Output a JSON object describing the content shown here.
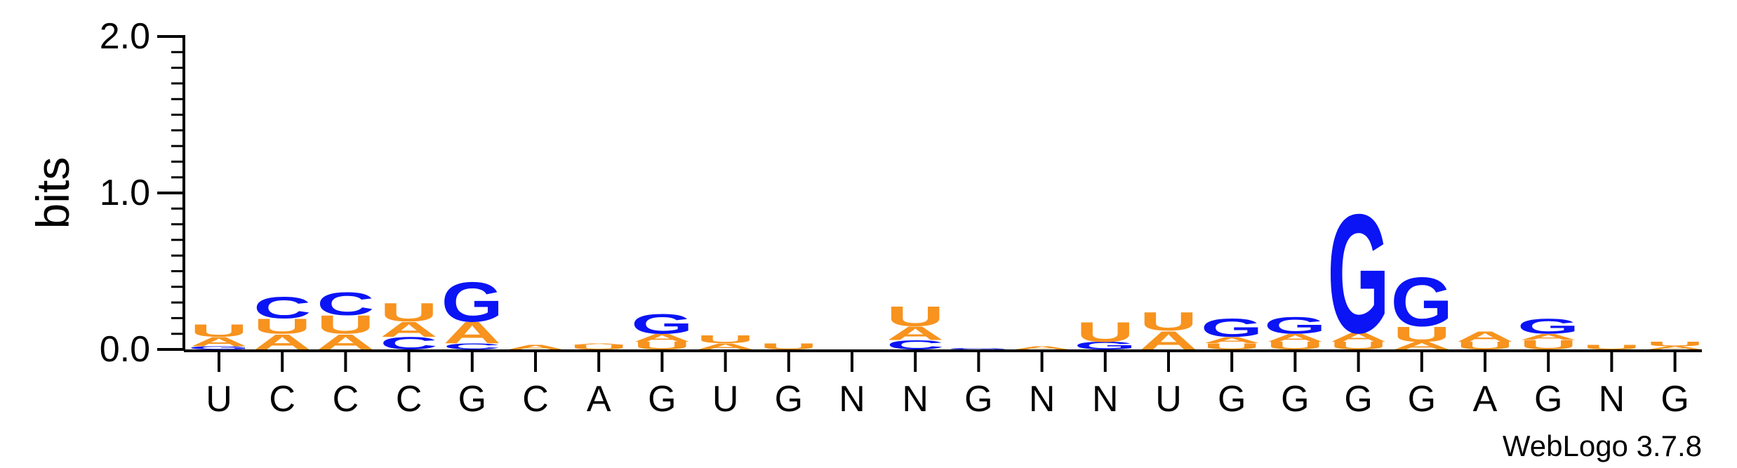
{
  "chart_data": {
    "type": "sequence-logo",
    "ylabel": "bits",
    "ylim": [
      0,
      2.0
    ],
    "yticks": [
      "0.0",
      "1.0",
      "2.0"
    ],
    "credit": "WebLogo 3.7.8",
    "colors": {
      "A": "#f7931e",
      "U": "#f7931e",
      "C": "#0a14f5",
      "G": "#0a14f5"
    },
    "positions": [
      "U",
      "C",
      "C",
      "C",
      "G",
      "C",
      "A",
      "G",
      "U",
      "G",
      "N",
      "N",
      "G",
      "N",
      "N",
      "U",
      "G",
      "G",
      "G",
      "G",
      "A",
      "G",
      "N",
      "G"
    ],
    "stacks": [
      [
        {
          "letter": "G",
          "bits": 0.02
        },
        {
          "letter": "A",
          "bits": 0.06
        },
        {
          "letter": "U",
          "bits": 0.08
        }
      ],
      [
        {
          "letter": "A",
          "bits": 0.1
        },
        {
          "letter": "U",
          "bits": 0.1
        },
        {
          "letter": "C",
          "bits": 0.14
        }
      ],
      [
        {
          "letter": "A",
          "bits": 0.1
        },
        {
          "letter": "U",
          "bits": 0.12
        },
        {
          "letter": "C",
          "bits": 0.15
        }
      ],
      [
        {
          "letter": "C",
          "bits": 0.08
        },
        {
          "letter": "A",
          "bits": 0.1
        },
        {
          "letter": "U",
          "bits": 0.12
        }
      ],
      [
        {
          "letter": "C",
          "bits": 0.04
        },
        {
          "letter": "A",
          "bits": 0.14
        },
        {
          "letter": "G",
          "bits": 0.26
        }
      ],
      [
        {
          "letter": "A",
          "bits": 0.03
        }
      ],
      [
        {
          "letter": "U",
          "bits": 0.03
        },
        {
          "letter": "A",
          "bits": 0.01
        }
      ],
      [
        {
          "letter": "U",
          "bits": 0.05
        },
        {
          "letter": "A",
          "bits": 0.05
        },
        {
          "letter": "G",
          "bits": 0.13
        }
      ],
      [
        {
          "letter": "A",
          "bits": 0.04
        },
        {
          "letter": "U",
          "bits": 0.05
        }
      ],
      [
        {
          "letter": "U",
          "bits": 0.04
        }
      ],
      [],
      [
        {
          "letter": "C",
          "bits": 0.06
        },
        {
          "letter": "A",
          "bits": 0.09
        },
        {
          "letter": "U",
          "bits": 0.13
        }
      ],
      [
        {
          "letter": "G",
          "bits": 0.01
        }
      ],
      [
        {
          "letter": "A",
          "bits": 0.02
        }
      ],
      [
        {
          "letter": "G",
          "bits": 0.05
        },
        {
          "letter": "U",
          "bits": 0.13
        }
      ],
      [
        {
          "letter": "A",
          "bits": 0.12
        },
        {
          "letter": "U",
          "bits": 0.12
        }
      ],
      [
        {
          "letter": "U",
          "bits": 0.04
        },
        {
          "letter": "A",
          "bits": 0.04
        },
        {
          "letter": "G",
          "bits": 0.12
        }
      ],
      [
        {
          "letter": "U",
          "bits": 0.05
        },
        {
          "letter": "A",
          "bits": 0.05
        },
        {
          "letter": "G",
          "bits": 0.11
        }
      ],
      [
        {
          "letter": "U",
          "bits": 0.05
        },
        {
          "letter": "A",
          "bits": 0.06
        },
        {
          "letter": "G",
          "bits": 0.78
        }
      ],
      [
        {
          "letter": "A",
          "bits": 0.05
        },
        {
          "letter": "U",
          "bits": 0.1
        },
        {
          "letter": "G",
          "bits": 0.32
        }
      ],
      [
        {
          "letter": "U",
          "bits": 0.05
        },
        {
          "letter": "A",
          "bits": 0.07
        }
      ],
      [
        {
          "letter": "U",
          "bits": 0.06
        },
        {
          "letter": "A",
          "bits": 0.04
        },
        {
          "letter": "G",
          "bits": 0.1
        }
      ],
      [
        {
          "letter": "U",
          "bits": 0.03
        }
      ],
      [
        {
          "letter": "A",
          "bits": 0.02
        },
        {
          "letter": "U",
          "bits": 0.03
        }
      ]
    ]
  }
}
